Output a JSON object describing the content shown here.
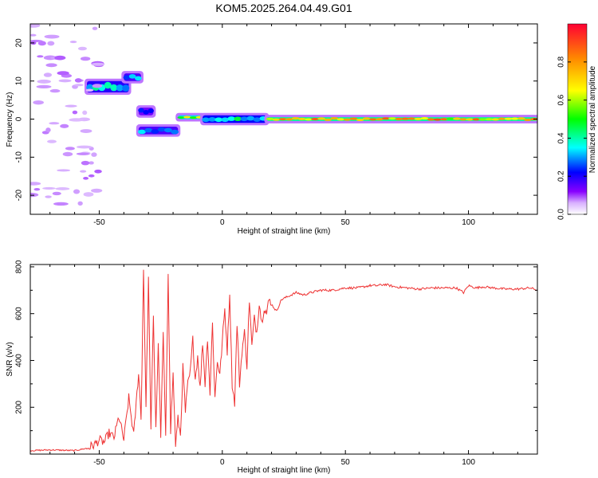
{
  "chart_data": [
    {
      "type": "heatmap",
      "title": "KOM5.2025.264.04.49.G01",
      "xlabel": "Height of straight line (km)",
      "ylabel": "Frequency (Hz)",
      "xlim": [
        -78,
        128
      ],
      "ylim": [
        -25,
        25
      ],
      "x_ticks": [
        -50,
        0,
        50,
        100
      ],
      "y_ticks": [
        -20,
        -10,
        0,
        10,
        20
      ],
      "colorbar": {
        "label": "Normalized spectral amplitude",
        "range": [
          0,
          1
        ],
        "ticks": [
          0.0,
          0.2,
          0.4,
          0.6,
          0.8
        ],
        "colormap": [
          "#ffffff",
          "#d8b0ff",
          "#8800ff",
          "#0000ff",
          "#00ffff",
          "#00ff00",
          "#ffff00",
          "#ff8800",
          "#ff0033"
        ]
      },
      "features": [
        {
          "x": [
            -55,
            -38
          ],
          "y": [
            7,
            10
          ],
          "amplitude": 0.35
        },
        {
          "x": [
            -40,
            -33
          ],
          "y": [
            10,
            12
          ],
          "amplitude": 0.3
        },
        {
          "x": [
            -34,
            -28
          ],
          "y": [
            1,
            3
          ],
          "amplitude": 0.25
        },
        {
          "x": [
            -34,
            -18
          ],
          "y": [
            -4,
            -2
          ],
          "amplitude": 0.3
        },
        {
          "x": [
            -18,
            -8
          ],
          "y": [
            0,
            1
          ],
          "amplitude": 0.6
        },
        {
          "x": [
            -8,
            18
          ],
          "y": [
            -1,
            1
          ],
          "amplitude": 0.4
        },
        {
          "x": [
            18,
            128
          ],
          "y": [
            -0.5,
            0.5
          ],
          "amplitude": 0.75
        }
      ]
    },
    {
      "type": "line",
      "xlabel": "Height of straight line (km)",
      "ylabel": "SNR (v/v)",
      "xlim": [
        -78,
        128
      ],
      "ylim": [
        0,
        810
      ],
      "x_ticks": [
        -50,
        0,
        50,
        100
      ],
      "y_ticks": [
        200,
        400,
        600,
        800
      ],
      "color": "#ee3333",
      "series": [
        {
          "x": [
            -78,
            -70,
            -60,
            -55,
            -52,
            -50,
            -48,
            -46,
            -44,
            -42,
            -40,
            -38,
            -36,
            -34,
            -33,
            -32,
            -31,
            -30,
            -29,
            -28,
            -27,
            -26,
            -25,
            -24,
            -23,
            -22,
            -21,
            -20,
            -19,
            -18,
            -17,
            -16,
            -15,
            -14,
            -13,
            -12,
            -11,
            -10,
            -9,
            -8,
            -7,
            -6,
            -5,
            -4,
            -3,
            -2,
            -1,
            0,
            1,
            2,
            3,
            4,
            5,
            6,
            7,
            8,
            9,
            10,
            11,
            12,
            13,
            14,
            15,
            16,
            17,
            18,
            19,
            20,
            22,
            24,
            26,
            28,
            30,
            33,
            36,
            40,
            45,
            50,
            55,
            60,
            63,
            66,
            70,
            75,
            80,
            85,
            90,
            95,
            98,
            100,
            103,
            106,
            110,
            115,
            120,
            125,
            128
          ],
          "y": [
            15,
            18,
            15,
            25,
            40,
            60,
            50,
            90,
            70,
            160,
            60,
            240,
            80,
            350,
            150,
            790,
            200,
            750,
            100,
            580,
            120,
            460,
            80,
            520,
            60,
            780,
            100,
            340,
            40,
            150,
            80,
            370,
            180,
            300,
            350,
            490,
            320,
            420,
            280,
            480,
            300,
            500,
            260,
            560,
            240,
            400,
            340,
            480,
            620,
            440,
            690,
            300,
            220,
            560,
            300,
            440,
            520,
            380,
            660,
            460,
            580,
            520,
            650,
            560,
            630,
            600,
            660,
            640,
            610,
            660,
            670,
            680,
            690,
            680,
            690,
            700,
            700,
            710,
            710,
            720,
            720,
            725,
            715,
            710,
            705,
            710,
            710,
            710,
            690,
            720,
            710,
            715,
            710,
            705,
            705,
            710,
            700
          ]
        }
      ]
    }
  ]
}
